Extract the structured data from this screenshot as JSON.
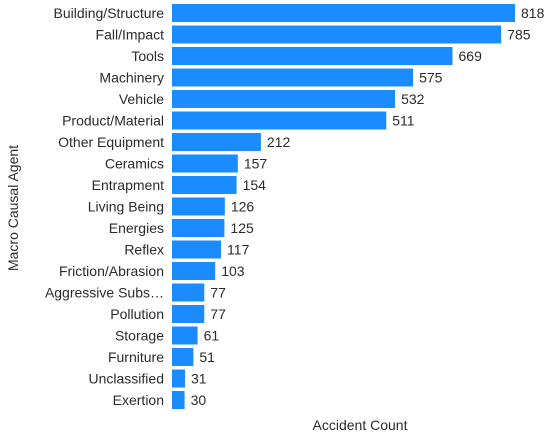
{
  "chart_data": {
    "type": "bar",
    "orientation": "horizontal",
    "categories": [
      "Building/Structure",
      "Fall/Impact",
      "Tools",
      "Machinery",
      "Vehicle",
      "Product/Material",
      "Other Equipment",
      "Ceramics",
      "Entrapment",
      "Living Being",
      "Energies",
      "Reflex",
      "Friction/Abrasion",
      "Aggressive Subs…",
      "Pollution",
      "Storage",
      "Furniture",
      "Unclassified",
      "Exertion"
    ],
    "values": [
      818,
      785,
      669,
      575,
      532,
      511,
      212,
      157,
      154,
      126,
      125,
      117,
      103,
      77,
      77,
      61,
      51,
      31,
      30
    ],
    "xlabel": "Accident Count",
    "ylabel": "Macro Causal Agent",
    "xlim": [
      0,
      818
    ],
    "bar_color": "#1a8cff",
    "grid": false,
    "legend": "none"
  }
}
